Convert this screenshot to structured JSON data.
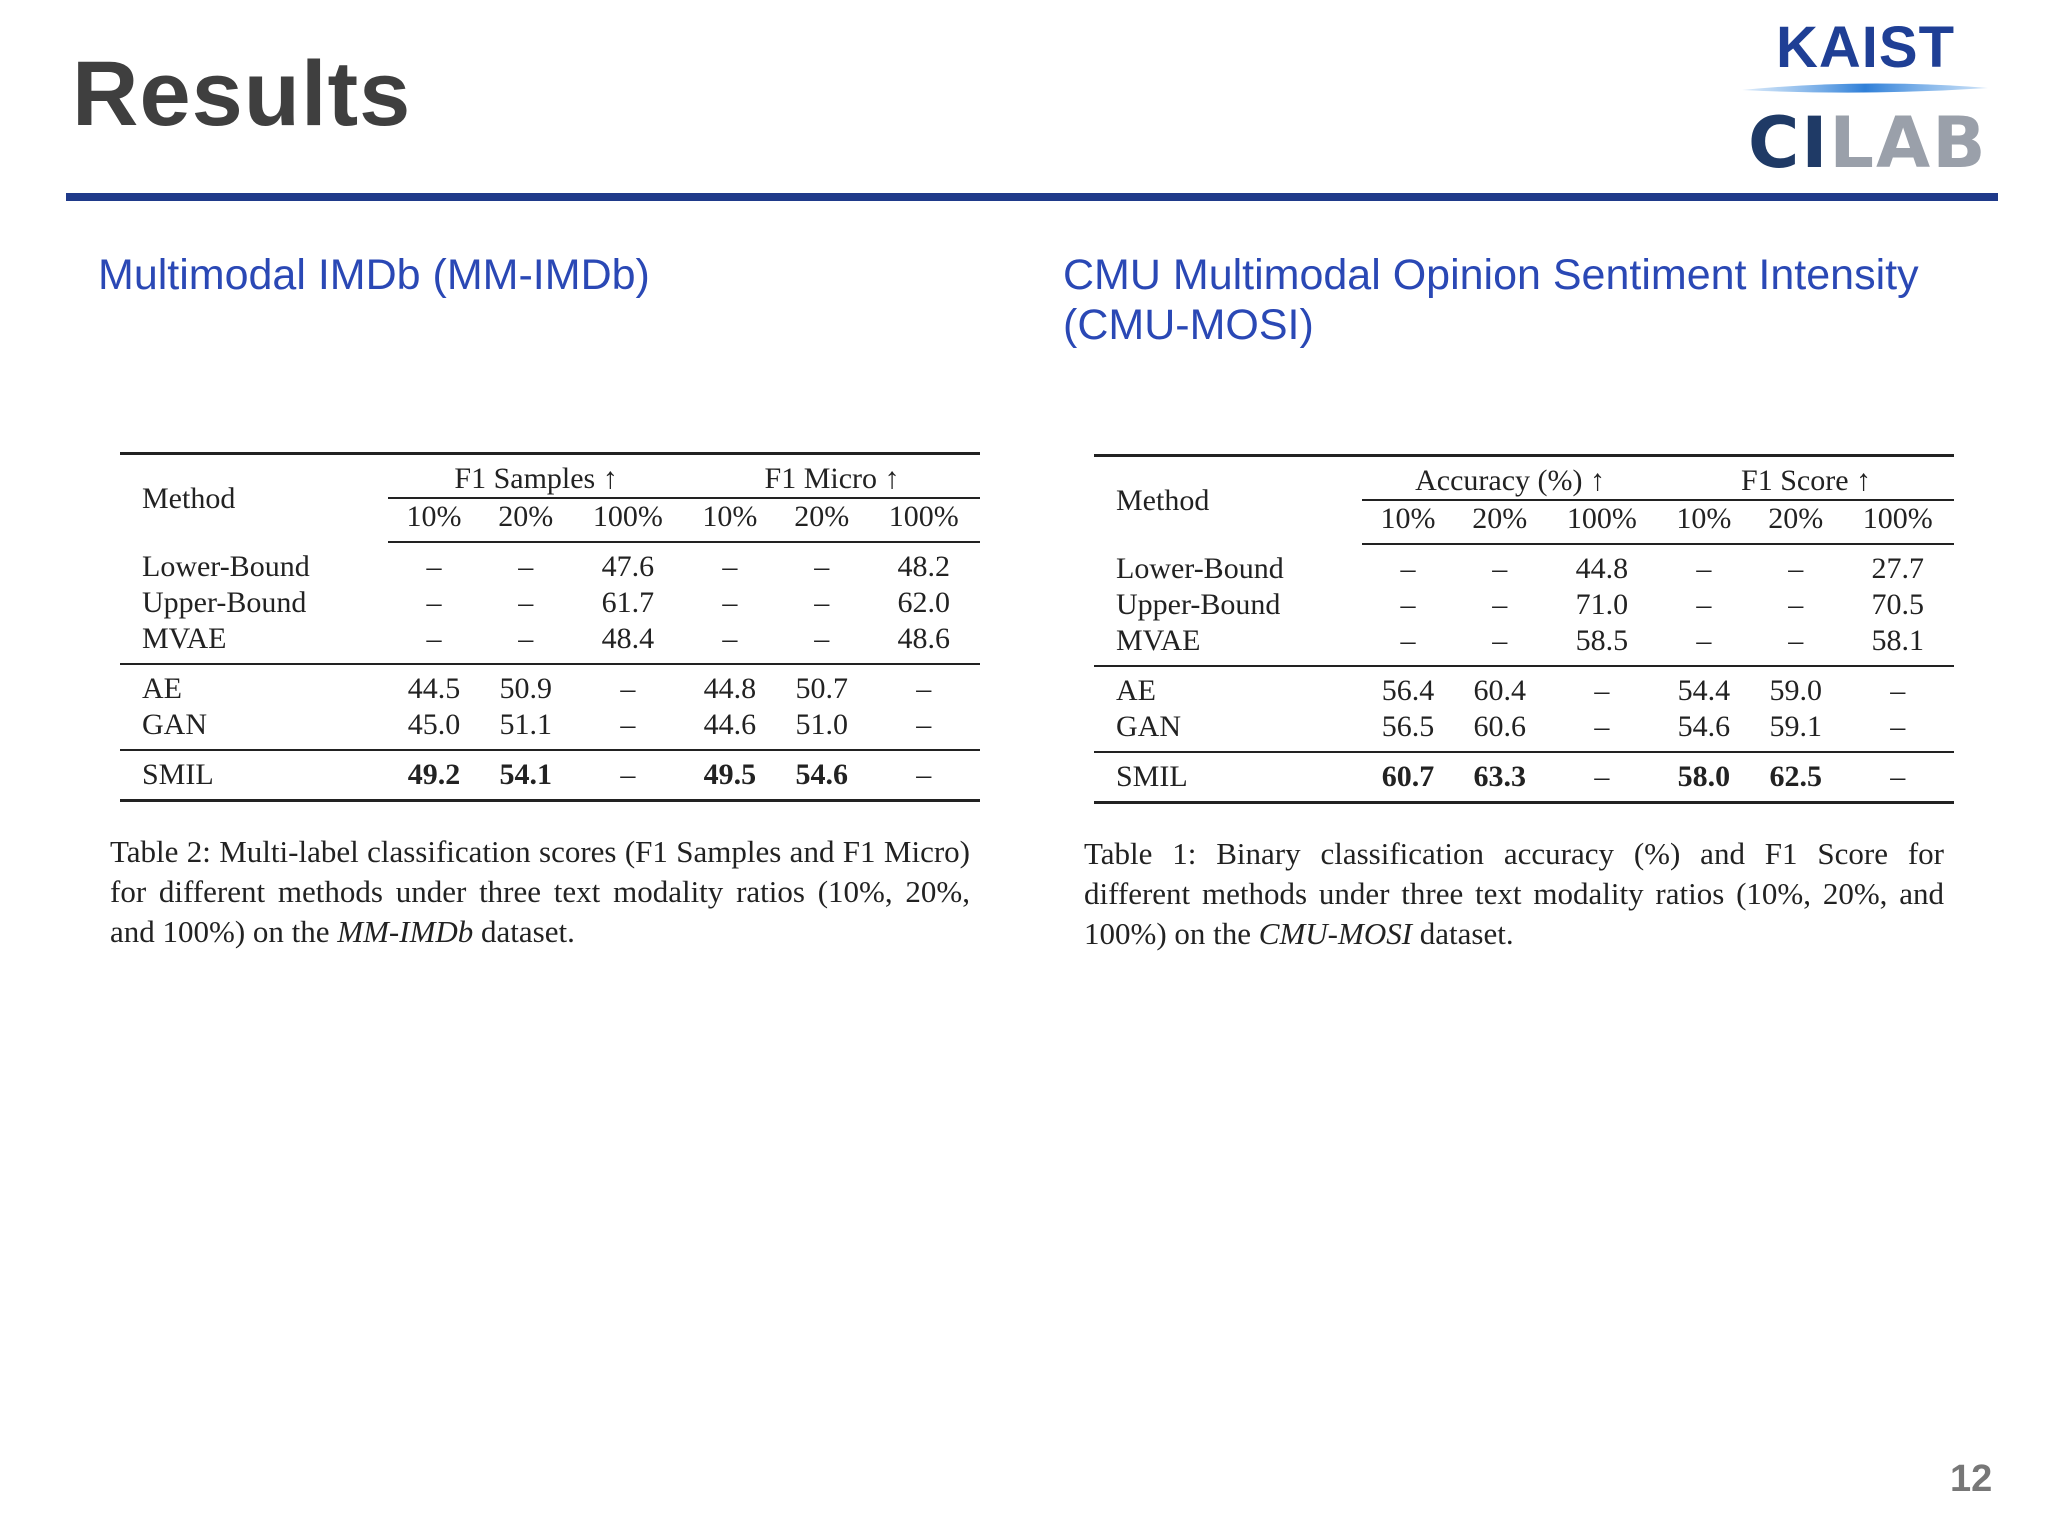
{
  "slide": {
    "title": "Results",
    "page_number": "12"
  },
  "logo": {
    "line1": "KAIST",
    "line2_a": "CI",
    "line2_b": "LAB",
    "colors": {
      "blue": "#1f3f95",
      "gray": "#9aa0aa"
    }
  },
  "left": {
    "heading": "Multimodal IMDb (MM-IMDb)",
    "table": {
      "method_header": "Method",
      "group1": "F1 Samples ↑",
      "group2": "F1 Micro ↑",
      "ratios": [
        "10%",
        "20%",
        "100%",
        "10%",
        "20%",
        "100%"
      ],
      "rows": [
        {
          "method": "Lower-Bound",
          "values": [
            "–",
            "–",
            "47.6",
            "–",
            "–",
            "48.2"
          ]
        },
        {
          "method": "Upper-Bound",
          "values": [
            "–",
            "–",
            "61.7",
            "–",
            "–",
            "62.0"
          ]
        },
        {
          "method": "MVAE",
          "values": [
            "–",
            "–",
            "48.4",
            "–",
            "–",
            "48.6"
          ]
        },
        {
          "method": "AE",
          "values": [
            "44.5",
            "50.9",
            "–",
            "44.8",
            "50.7",
            "–"
          ]
        },
        {
          "method": "GAN",
          "values": [
            "45.0",
            "51.1",
            "–",
            "44.6",
            "51.0",
            "–"
          ]
        },
        {
          "method": "SMIL",
          "values": [
            "49.2",
            "54.1",
            "–",
            "49.5",
            "54.6",
            "–"
          ]
        }
      ]
    },
    "caption": {
      "prefix": "Table 2: Multi-label classification scores (F1 Samples and F1 Micro) for different methods under three text modality ratios (10%, 20%, and 100%) on the ",
      "dataset": "MM-IMDb",
      "suffix": " dataset."
    }
  },
  "right": {
    "heading": "CMU Multimodal Opinion Sentiment Intensity (CMU-MOSI)",
    "table": {
      "method_header": "Method",
      "group1": "Accuracy (%) ↑",
      "group2": "F1 Score ↑",
      "ratios": [
        "10%",
        "20%",
        "100%",
        "10%",
        "20%",
        "100%"
      ],
      "rows": [
        {
          "method": "Lower-Bound",
          "values": [
            "–",
            "–",
            "44.8",
            "–",
            "–",
            "27.7"
          ]
        },
        {
          "method": "Upper-Bound",
          "values": [
            "–",
            "–",
            "71.0",
            "–",
            "–",
            "70.5"
          ]
        },
        {
          "method": "MVAE",
          "values": [
            "–",
            "–",
            "58.5",
            "–",
            "–",
            "58.1"
          ]
        },
        {
          "method": "AE",
          "values": [
            "56.4",
            "60.4",
            "–",
            "54.4",
            "59.0",
            "–"
          ]
        },
        {
          "method": "GAN",
          "values": [
            "56.5",
            "60.6",
            "–",
            "54.6",
            "59.1",
            "–"
          ]
        },
        {
          "method": "SMIL",
          "values": [
            "60.7",
            "63.3",
            "–",
            "58.0",
            "62.5",
            "–"
          ]
        }
      ]
    },
    "caption": {
      "prefix": "Table 1: Binary classification accuracy (%) and F1 Score for different methods under three text modality ratios (10%, 20%, and 100%) on the ",
      "dataset": "CMU-MOSI",
      "suffix": " dataset."
    }
  }
}
